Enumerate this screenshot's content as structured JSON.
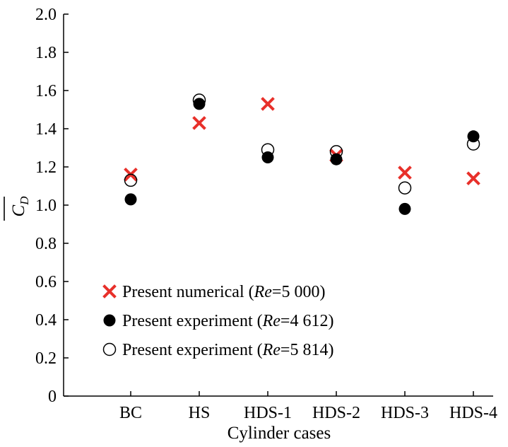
{
  "chart_data": {
    "type": "scatter",
    "categories": [
      "BC",
      "HS",
      "HDS-1",
      "HDS-2",
      "HDS-3",
      "HDS-4"
    ],
    "xlabel": "Cylinder cases",
    "ylabel": {
      "main": "C",
      "sub": "D"
    },
    "ylim": [
      0,
      2.0
    ],
    "yticks": [
      "0",
      "0.2",
      "0.4",
      "0.6",
      "0.8",
      "1.0",
      "1.2",
      "1.4",
      "1.6",
      "1.8",
      "2.0"
    ],
    "grid": false,
    "legend_placement": "bottom-left",
    "series": [
      {
        "name": "numerical",
        "legend": {
          "pre": "Present numerical (",
          "re": "Re",
          "post": "=5 000)"
        },
        "marker": "cross",
        "color": "#e8302a",
        "values": [
          1.16,
          1.43,
          1.53,
          1.26,
          1.17,
          1.14
        ]
      },
      {
        "name": "exp4612",
        "legend": {
          "pre": "Present experiment (",
          "re": "Re",
          "post": "=4 612)"
        },
        "marker": "filled-circle",
        "color": "#000000",
        "values": [
          1.03,
          1.53,
          1.25,
          1.24,
          0.98,
          1.36
        ]
      },
      {
        "name": "exp5814",
        "legend": {
          "pre": "Present experiment (",
          "re": "Re",
          "post": "=5 814)"
        },
        "marker": "open-circle",
        "color": "#000000",
        "values": [
          1.13,
          1.55,
          1.29,
          1.28,
          1.09,
          1.32
        ]
      }
    ]
  }
}
